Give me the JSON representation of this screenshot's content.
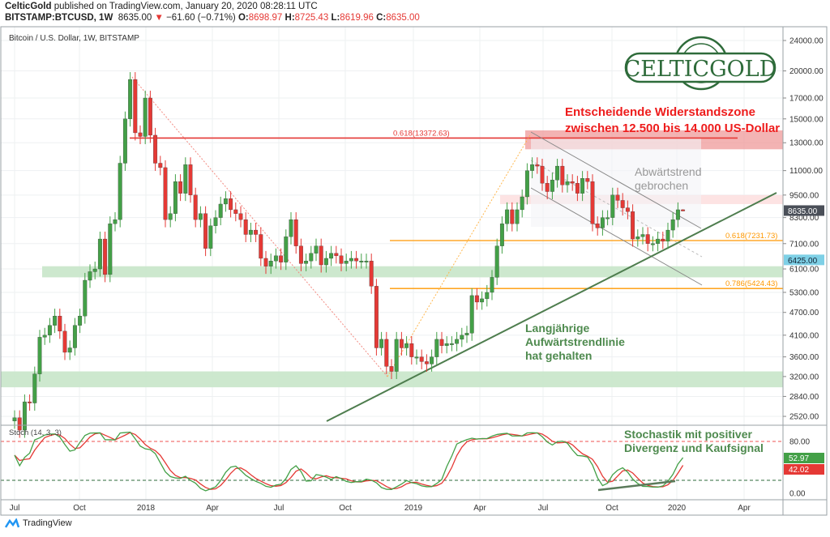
{
  "header": {
    "author": "CelticGold",
    "published": "published on TradingView.com, January 20, 2020 08:28:11 UTC",
    "symbol": "BITSTAMP:BTCUSD, 1W",
    "last": "8635.00",
    "change": "−61.60 (−0.71%)",
    "o_label": "O:",
    "o": "8698.97",
    "h_label": "H:",
    "h": "8725.43",
    "l_label": "L:",
    "l": "8619.96",
    "c_label": "C:",
    "c": "8635.00"
  },
  "footer": {
    "brand": "TradingView"
  },
  "colors": {
    "up": "#43a047",
    "down": "#e53935",
    "fib": "#ff9800",
    "zone_green": "#a5d6a7",
    "zone_red": "#ef9a9a",
    "trend": "#4e7d4e"
  },
  "chart_data": {
    "type": "candlestick",
    "title": "Bitcoin / U.S. Dollar, 1W, BITSTAMP",
    "scale": "log",
    "ylim": [
      2400,
      26000
    ],
    "first_open": 2450,
    "weekly_close": [
      2500,
      2320,
      2750,
      2730,
      3250,
      4050,
      4100,
      4350,
      4600,
      4200,
      3700,
      3800,
      4350,
      4600,
      5700,
      6000,
      6100,
      7300,
      5900,
      8000,
      8200,
      11500,
      15000,
      19000,
      13800,
      13500,
      17000,
      13600,
      11500,
      11200,
      8200,
      8500,
      10300,
      9600,
      11400,
      9500,
      8200,
      8500,
      6900,
      7900,
      8300,
      9000,
      9300,
      8700,
      8500,
      8200,
      7500,
      7700,
      7500,
      6500,
      6200,
      6400,
      6600,
      6350,
      7400,
      8200,
      7000,
      6300,
      6400,
      6700,
      7000,
      6250,
      6500,
      6700,
      6600,
      6300,
      6400,
      6500,
      6400,
      6400,
      6400,
      5500,
      3800,
      4000,
      3400,
      3300,
      4000,
      3800,
      3900,
      3600,
      3600,
      3500,
      3450,
      3600,
      4000,
      3850,
      3900,
      3900,
      4000,
      4100,
      4150,
      5200,
      5000,
      5100,
      5300,
      5800,
      7000,
      8000,
      8700,
      8000,
      8700,
      9400,
      11000,
      11400,
      11300,
      10200,
      9700,
      10400,
      11300,
      10100,
      10300,
      10200,
      9600,
      10500,
      10300,
      8000,
      7800,
      8300,
      8300,
      9500,
      9200,
      8800,
      8600,
      7300,
      7400,
      7500,
      7100,
      7100,
      7300,
      7200,
      7700,
      8200,
      8698.97,
      8635
    ],
    "last_bar": {
      "open": 8698.97,
      "high": 8725.43,
      "low": 8619.96,
      "close": 8635.0
    },
    "price_ticks": [
      "24000.00",
      "20000.00",
      "17000.00",
      "15000.00",
      "13000.00",
      "11000.00",
      "9500.00",
      "8300.00",
      "7100.00",
      "6100.00",
      "5300.00",
      "4700.00",
      "4100.00",
      "3600.00",
      "3200.00",
      "2840.00",
      "2520.00"
    ],
    "price_tick_values": [
      24000,
      20000,
      17000,
      15000,
      13000,
      11000,
      9500,
      8300,
      7100,
      6100,
      5300,
      4700,
      4100,
      3600,
      3200,
      2840,
      2520
    ],
    "time_ticks": [
      "Jul",
      "Oct",
      "2018",
      "Apr",
      "Jul",
      "Oct",
      "2019",
      "Apr",
      "Jul",
      "Oct",
      "2020",
      "Apr"
    ],
    "last_price_tag": "8635.00",
    "marker_price_tag": "6425.00",
    "levels": [
      {
        "label": "0.618(13372.63)",
        "price": 13372.63,
        "color": "#e53935"
      },
      {
        "label": "0.618(7231.73)",
        "price": 7231.73,
        "color": "#ff9800"
      },
      {
        "label": "0.786(5424.43)",
        "price": 5424.43,
        "color": "#ff9800"
      }
    ],
    "zones": [
      {
        "name": "resistance",
        "from": 12500,
        "to": 14000,
        "color": "#ef9a9a"
      },
      {
        "name": "resistance-minor",
        "from": 9000,
        "to": 9500,
        "color": "#fde0e0"
      },
      {
        "name": "support-upper",
        "from": 5800,
        "to": 6200,
        "color": "#c8e6c9"
      },
      {
        "name": "support-lower",
        "from": 3000,
        "to": 3300,
        "color": "#c8e6c9"
      }
    ],
    "annotations": {
      "resistance_1": "Entscheidende Widerstandszone",
      "resistance_2": "zwischen 12.500 bis 14.000 US-Dollar",
      "downtrend_1": "Abwärtstrend",
      "downtrend_2": "gebrochen",
      "uptrend_1": "Langjährige",
      "uptrend_2": "Aufwärtstrendlinie",
      "uptrend_3": "hat gehalten",
      "stoch_1": "Stochastik mit positiver",
      "stoch_2": "Divergenz und Kaufsignal"
    },
    "logo": "CELTICGOLD",
    "stoch": {
      "label": "Stoch (14, 3, 3)",
      "k_value": "52.97",
      "d_value": "42.02",
      "ticks": [
        "80.00",
        "0.00"
      ],
      "upper": 80,
      "lower": 20,
      "k_color": "#43a047",
      "d_color": "#e53935"
    }
  }
}
